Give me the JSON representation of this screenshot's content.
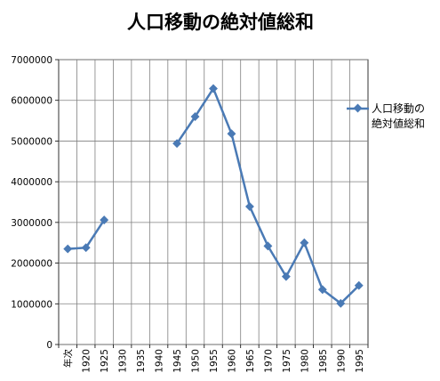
{
  "chart_data": {
    "type": "line",
    "title": "人口移動の絶対値総和",
    "categories": [
      "年次",
      "1920",
      "1925",
      "1930",
      "1935",
      "1940",
      "1945",
      "1950",
      "1955",
      "1960",
      "1965",
      "1970",
      "1975",
      "1980",
      "1985",
      "1990",
      "1995"
    ],
    "series": [
      {
        "name": "人口移動の絶対値総和",
        "color": "#4a7ab5",
        "values": [
          2350000,
          2380000,
          3060000,
          null,
          null,
          null,
          4940000,
          5600000,
          6290000,
          5180000,
          3390000,
          2420000,
          1670000,
          2500000,
          1350000,
          1010000,
          1450000
        ]
      }
    ],
    "ylim": [
      0,
      7000000
    ],
    "yticks": [
      "0",
      "1000000",
      "2000000",
      "3000000",
      "4000000",
      "5000000",
      "6000000",
      "7000000"
    ],
    "grid": true,
    "legend_position": "right",
    "legend_lines": [
      "人口移動の",
      "絶対値総和"
    ]
  }
}
